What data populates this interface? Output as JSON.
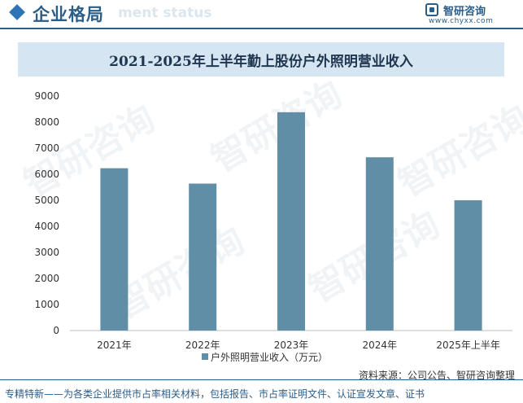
{
  "header": {
    "section_title": "企业格局",
    "section_ghost": "ment status",
    "brand_name": "智研咨询",
    "brand_url": "www.chyxx.com"
  },
  "watermark_text": "智研咨询",
  "colors": {
    "bar": "#5f8ea6",
    "accent": "#2c5d86",
    "title_bg": "#d5e5f1"
  },
  "chart_data": {
    "type": "bar",
    "title": "2021-2025年上半年勤上股份户外照明营业收入",
    "categories": [
      "2021年",
      "2022年",
      "2023年",
      "2024年",
      "2025年上半年"
    ],
    "series": [
      {
        "name": "户外照明营业收入（万元）",
        "values": [
          6230,
          5640,
          8380,
          6650,
          5000
        ]
      }
    ],
    "ylim": [
      0,
      9000
    ],
    "yticks": [
      0,
      1000,
      2000,
      3000,
      4000,
      5000,
      6000,
      7000,
      8000,
      9000
    ],
    "legend_position": "bottom"
  },
  "footer": {
    "source": "资料来源：公司公告、智研咨询整理",
    "tagline": "专精特新——为各类企业提供市占率相关材料，包括报告、市占率证明文件、认证宣发文章、证书"
  }
}
